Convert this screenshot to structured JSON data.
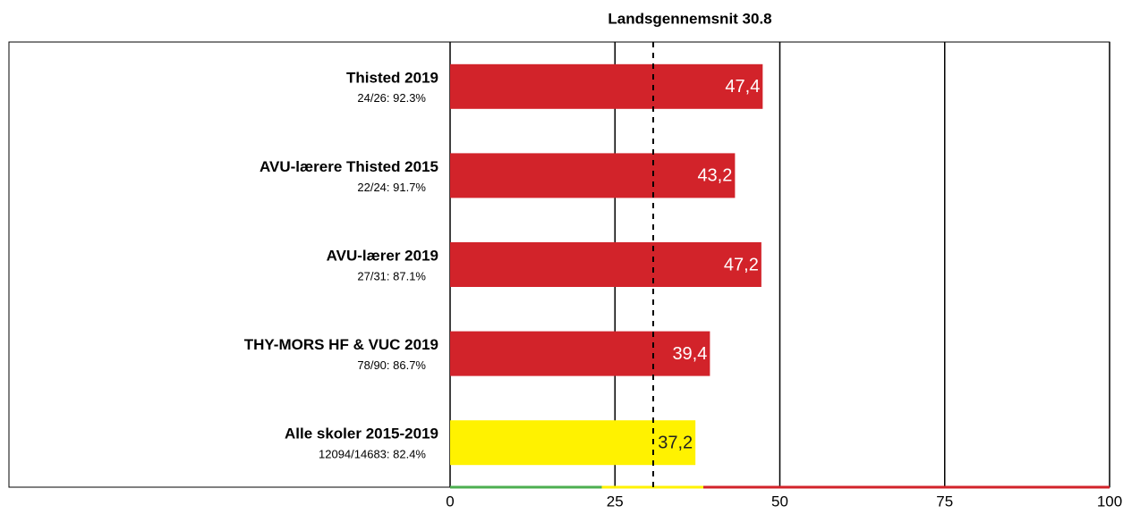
{
  "chart_data": {
    "type": "hbar",
    "title": "Landsgennemsnit 30.8",
    "reference_line": 30.8,
    "categories": [
      "Thisted 2019",
      "AVU-lærere Thisted 2015",
      "AVU-lærer 2019",
      "THY-MORS HF & VUC 2019",
      "Alle skoler 2015-2019"
    ],
    "subtitles": [
      "24/26: 92.3%",
      "22/24: 91.7%",
      "27/31: 87.1%",
      "78/90: 86.7%",
      "12094/14683: 82.4%"
    ],
    "values": [
      47.4,
      43.2,
      47.2,
      39.4,
      37.2
    ],
    "value_labels": [
      "47,4",
      "43,2",
      "47,2",
      "39,4",
      "37,2"
    ],
    "colors": [
      "#d2232a",
      "#d2232a",
      "#d2232a",
      "#d2232a",
      "#fff200"
    ],
    "label_colors": [
      "#ffffff",
      "#ffffff",
      "#ffffff",
      "#ffffff",
      "#222222"
    ],
    "xlim": [
      0,
      100
    ],
    "xticks": [
      0,
      25,
      50,
      75,
      100
    ],
    "zones": [
      {
        "from": 0,
        "to": 23,
        "color": "#4caf50"
      },
      {
        "from": 23,
        "to": 38.4,
        "color": "#fff200"
      },
      {
        "from": 38.4,
        "to": 100,
        "color": "#d2232a"
      }
    ]
  }
}
